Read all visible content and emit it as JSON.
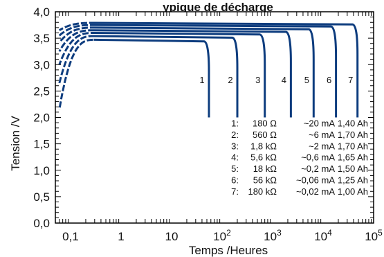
{
  "chart_data": {
    "type": "line",
    "title": "ypique de décharge",
    "xlabel": "Temps /Heures",
    "ylabel": "Tension /V",
    "x_scale": "log",
    "xlim": [
      0.05,
      100000
    ],
    "ylim": [
      0.0,
      4.0
    ],
    "grid": true,
    "x_ticks": [
      {
        "value": 0.1,
        "label": "0,1"
      },
      {
        "value": 1,
        "label": "1"
      },
      {
        "value": 10,
        "label": "10"
      },
      {
        "value": 100,
        "label": "10",
        "sup": "2"
      },
      {
        "value": 1000,
        "label": "10",
        "sup": "3"
      },
      {
        "value": 10000,
        "label": "10",
        "sup": "4"
      },
      {
        "value": 100000,
        "label": "10",
        "sup": "5"
      }
    ],
    "y_ticks": [
      {
        "value": 0.0,
        "label": "0,0"
      },
      {
        "value": 0.5,
        "label": "0,5"
      },
      {
        "value": 1.0,
        "label": "1,0"
      },
      {
        "value": 1.5,
        "label": "1,5"
      },
      {
        "value": 2.0,
        "label": "2,0"
      },
      {
        "value": 2.5,
        "label": "2,5"
      },
      {
        "value": 3.0,
        "label": "3,0"
      },
      {
        "value": 3.5,
        "label": "3,5"
      },
      {
        "value": 4.0,
        "label": "4,0"
      }
    ],
    "line_color": "#0d3c7e",
    "series": [
      {
        "label": "1",
        "resistance": "180 Ω",
        "current": "~20 mA",
        "capacity": "1,40 Ah",
        "v_start": 2.15,
        "plateau": 3.47,
        "end_hours": 55
      },
      {
        "label": "2",
        "resistance": "560 Ω",
        "current": "~6 mA",
        "capacity": "1,70 Ah",
        "v_start": 2.65,
        "plateau": 3.54,
        "end_hours": 200
      },
      {
        "label": "3",
        "resistance": "1,8 kΩ",
        "current": "~2 mA",
        "capacity": "1,70 Ah",
        "v_start": 3.0,
        "plateau": 3.6,
        "end_hours": 700
      },
      {
        "label": "4",
        "resistance": "5,6 kΩ",
        "current": "~0,6 mA",
        "capacity": "1,65 Ah",
        "v_start": 3.25,
        "plateau": 3.65,
        "end_hours": 2300
      },
      {
        "label": "5",
        "resistance": "18 kΩ",
        "current": "~0,2 mA",
        "capacity": "1,50 Ah",
        "v_start": 3.42,
        "plateau": 3.7,
        "end_hours": 6500
      },
      {
        "label": "6",
        "resistance": "56 kΩ",
        "current": "~0,06 mA",
        "capacity": "1,25 Ah",
        "v_start": 3.55,
        "plateau": 3.75,
        "end_hours": 18000
      },
      {
        "label": "7",
        "resistance": "180 kΩ",
        "current": "~0,02 mA",
        "capacity": "1,00 Ah",
        "v_start": 3.65,
        "plateau": 3.79,
        "end_hours": 48000
      }
    ]
  }
}
